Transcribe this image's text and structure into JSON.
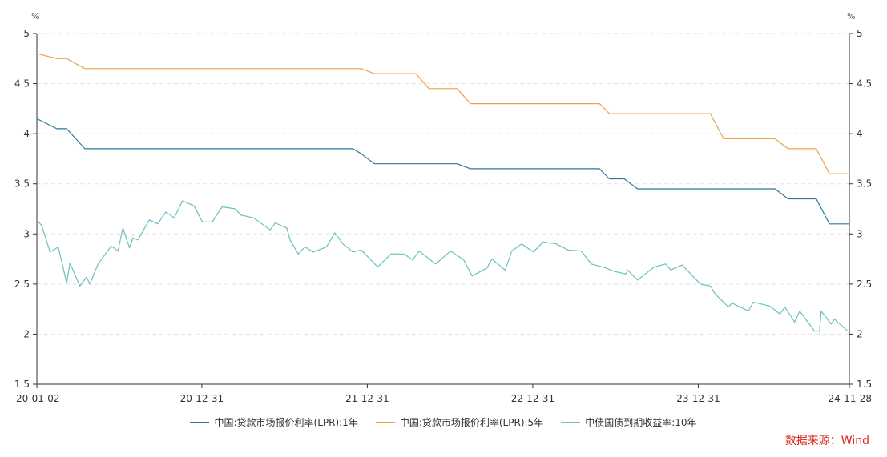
{
  "chart_data": {
    "type": "line",
    "title": "",
    "left_unit": "%",
    "right_unit": "%",
    "ylim": [
      1.5,
      5
    ],
    "y_ticks": [
      "1.5",
      "2",
      "2.5",
      "3",
      "3.5",
      "4",
      "4.5",
      "5"
    ],
    "xlim": [
      2020.0,
      2024.91
    ],
    "x_ticks": [
      {
        "label": "20-01-02",
        "t": 2020.0
      },
      {
        "label": "20-12-31",
        "t": 2020.997
      },
      {
        "label": "21-12-31",
        "t": 2021.997
      },
      {
        "label": "22-12-31",
        "t": 2022.997
      },
      {
        "label": "23-12-31",
        "t": 2023.997
      },
      {
        "label": "24-11-28",
        "t": 2024.91
      }
    ],
    "grid": true,
    "legend_placement": "bottom",
    "series": [
      {
        "name": "中国:贷款市场报价利率(LPR):1年",
        "color": "#2b7a98",
        "points": [
          [
            2020.0,
            4.15
          ],
          [
            2020.12,
            4.05
          ],
          [
            2020.18,
            4.05
          ],
          [
            2020.29,
            3.85
          ],
          [
            2021.91,
            3.85
          ],
          [
            2021.96,
            3.8
          ],
          [
            2022.04,
            3.7
          ],
          [
            2022.54,
            3.7
          ],
          [
            2022.62,
            3.65
          ],
          [
            2023.4,
            3.65
          ],
          [
            2023.46,
            3.55
          ],
          [
            2023.55,
            3.55
          ],
          [
            2023.63,
            3.45
          ],
          [
            2024.46,
            3.45
          ],
          [
            2024.54,
            3.35
          ],
          [
            2024.71,
            3.35
          ],
          [
            2024.79,
            3.1
          ],
          [
            2024.91,
            3.1
          ]
        ]
      },
      {
        "name": "中国:贷款市场报价利率(LPR):5年",
        "color": "#e9a44a",
        "points": [
          [
            2020.0,
            4.8
          ],
          [
            2020.12,
            4.75
          ],
          [
            2020.18,
            4.75
          ],
          [
            2020.29,
            4.65
          ],
          [
            2021.96,
            4.65
          ],
          [
            2022.04,
            4.6
          ],
          [
            2022.29,
            4.6
          ],
          [
            2022.37,
            4.45
          ],
          [
            2022.54,
            4.45
          ],
          [
            2022.62,
            4.3
          ],
          [
            2023.4,
            4.3
          ],
          [
            2023.46,
            4.2
          ],
          [
            2024.07,
            4.2
          ],
          [
            2024.15,
            3.95
          ],
          [
            2024.46,
            3.95
          ],
          [
            2024.54,
            3.85
          ],
          [
            2024.71,
            3.85
          ],
          [
            2024.79,
            3.6
          ],
          [
            2024.91,
            3.6
          ]
        ]
      },
      {
        "name": "中债国债到期收益率:10年",
        "color": "#6cc0c0",
        "points": [
          [
            2020.0,
            3.14
          ],
          [
            2020.03,
            3.08
          ],
          [
            2020.08,
            2.82
          ],
          [
            2020.13,
            2.87
          ],
          [
            2020.18,
            2.51
          ],
          [
            2020.2,
            2.71
          ],
          [
            2020.26,
            2.48
          ],
          [
            2020.3,
            2.57
          ],
          [
            2020.32,
            2.5
          ],
          [
            2020.37,
            2.7
          ],
          [
            2020.45,
            2.88
          ],
          [
            2020.49,
            2.83
          ],
          [
            2020.52,
            3.06
          ],
          [
            2020.56,
            2.86
          ],
          [
            2020.58,
            2.96
          ],
          [
            2020.61,
            2.94
          ],
          [
            2020.68,
            3.14
          ],
          [
            2020.73,
            3.1
          ],
          [
            2020.78,
            3.22
          ],
          [
            2020.83,
            3.16
          ],
          [
            2020.88,
            3.33
          ],
          [
            2020.95,
            3.28
          ],
          [
            2021.0,
            3.12
          ],
          [
            2021.06,
            3.12
          ],
          [
            2021.12,
            3.27
          ],
          [
            2021.2,
            3.25
          ],
          [
            2021.23,
            3.19
          ],
          [
            2021.31,
            3.16
          ],
          [
            2021.41,
            3.04
          ],
          [
            2021.44,
            3.11
          ],
          [
            2021.51,
            3.06
          ],
          [
            2021.53,
            2.94
          ],
          [
            2021.58,
            2.8
          ],
          [
            2021.62,
            2.87
          ],
          [
            2021.67,
            2.82
          ],
          [
            2021.75,
            2.87
          ],
          [
            2021.8,
            3.01
          ],
          [
            2021.85,
            2.9
          ],
          [
            2021.91,
            2.82
          ],
          [
            2021.96,
            2.84
          ],
          [
            2022.06,
            2.67
          ],
          [
            2022.14,
            2.8
          ],
          [
            2022.22,
            2.8
          ],
          [
            2022.27,
            2.74
          ],
          [
            2022.31,
            2.83
          ],
          [
            2022.41,
            2.7
          ],
          [
            2022.5,
            2.83
          ],
          [
            2022.58,
            2.74
          ],
          [
            2022.63,
            2.58
          ],
          [
            2022.72,
            2.66
          ],
          [
            2022.75,
            2.75
          ],
          [
            2022.83,
            2.64
          ],
          [
            2022.87,
            2.83
          ],
          [
            2022.93,
            2.9
          ],
          [
            2023.0,
            2.82
          ],
          [
            2023.06,
            2.92
          ],
          [
            2023.14,
            2.9
          ],
          [
            2023.21,
            2.84
          ],
          [
            2023.29,
            2.83
          ],
          [
            2023.35,
            2.7
          ],
          [
            2023.44,
            2.66
          ],
          [
            2023.48,
            2.63
          ],
          [
            2023.56,
            2.6
          ],
          [
            2023.57,
            2.64
          ],
          [
            2023.63,
            2.54
          ],
          [
            2023.73,
            2.67
          ],
          [
            2023.8,
            2.7
          ],
          [
            2023.83,
            2.64
          ],
          [
            2023.9,
            2.69
          ],
          [
            2024.01,
            2.5
          ],
          [
            2024.07,
            2.48
          ],
          [
            2024.1,
            2.4
          ],
          [
            2024.18,
            2.27
          ],
          [
            2024.2,
            2.31
          ],
          [
            2024.3,
            2.23
          ],
          [
            2024.33,
            2.32
          ],
          [
            2024.43,
            2.28
          ],
          [
            2024.49,
            2.2
          ],
          [
            2024.52,
            2.27
          ],
          [
            2024.58,
            2.12
          ],
          [
            2024.61,
            2.23
          ],
          [
            2024.7,
            2.03
          ],
          [
            2024.73,
            2.03
          ],
          [
            2024.74,
            2.23
          ],
          [
            2024.8,
            2.1
          ],
          [
            2024.82,
            2.15
          ],
          [
            2024.9,
            2.03
          ]
        ]
      }
    ]
  },
  "source_label": "数据来源：Wind"
}
